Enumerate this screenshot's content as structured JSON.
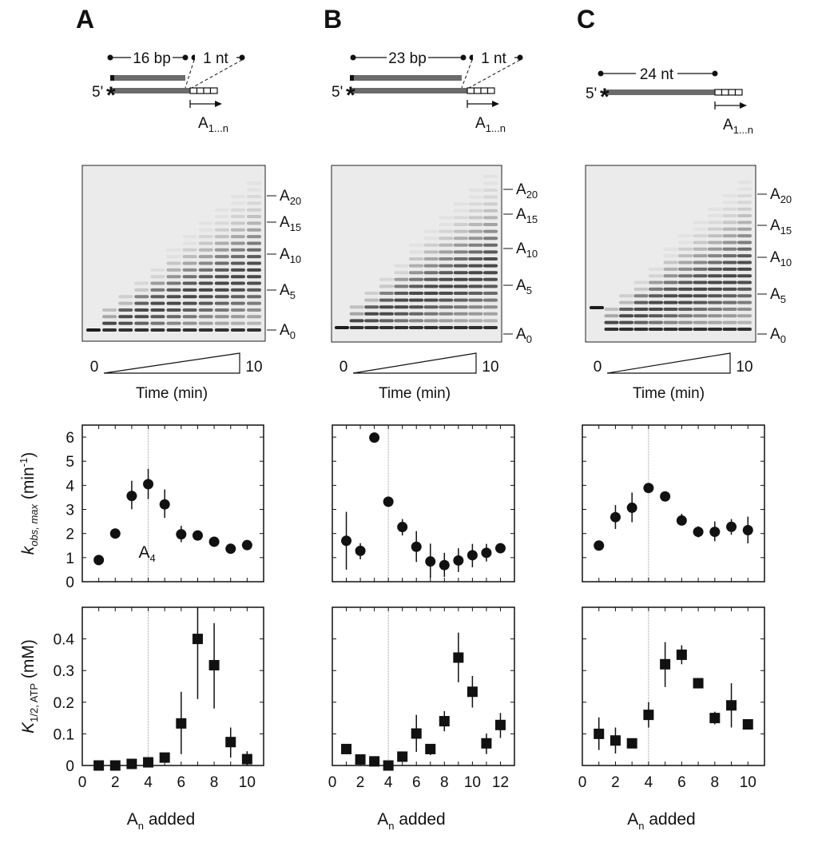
{
  "panels": [
    {
      "letter": "A",
      "diagram": {
        "prime": "5'",
        "star": "*",
        "duplex_label": "16 bp",
        "overhang_label": "1 nt",
        "product": {
          "base": "A",
          "sub": "1...n"
        }
      },
      "gel": {
        "markers": [
          {
            "base": "A",
            "sub": "20"
          },
          {
            "base": "A",
            "sub": "15"
          },
          {
            "base": "A",
            "sub": "10"
          },
          {
            "base": "A",
            "sub": "5"
          },
          {
            "base": "A",
            "sub": "0"
          }
        ],
        "time_start": "0",
        "time_end": "10",
        "time_label": "Time (min)",
        "lanes": 11
      }
    },
    {
      "letter": "B",
      "diagram": {
        "prime": "5'",
        "star": "*",
        "duplex_label": "23 bp",
        "overhang_label": "1 nt",
        "product": {
          "base": "A",
          "sub": "1...n"
        }
      },
      "gel": {
        "markers": [
          {
            "base": "A",
            "sub": "20"
          },
          {
            "base": "A",
            "sub": "15"
          },
          {
            "base": "A",
            "sub": "10"
          },
          {
            "base": "A",
            "sub": "5"
          },
          {
            "base": "A",
            "sub": "0"
          }
        ],
        "time_start": "0",
        "time_end": "10",
        "time_label": "Time (min)",
        "lanes": 11
      }
    },
    {
      "letter": "C",
      "diagram": {
        "prime": "5'",
        "star": "*",
        "duplex_label": "24 nt",
        "product": {
          "base": "A",
          "sub": "1...n"
        }
      },
      "gel": {
        "markers": [
          {
            "base": "A",
            "sub": "20"
          },
          {
            "base": "A",
            "sub": "15"
          },
          {
            "base": "A",
            "sub": "10"
          },
          {
            "base": "A",
            "sub": "5"
          },
          {
            "base": "A",
            "sub": "0"
          }
        ],
        "time_start": "0",
        "time_end": "10",
        "time_label": "Time (min)",
        "lanes": 11
      }
    }
  ],
  "axis_text": {
    "kobs_ylabel": {
      "main": "k",
      "sub": "obs, max",
      "unit": " (min",
      "sup": "-1",
      "close": ")"
    },
    "khalf_ylabel": {
      "main": "K",
      "sub": "1/2, ATP",
      "unit": " (mM)"
    },
    "xlabel": {
      "base": "A",
      "sub": "n",
      "rest": " added"
    },
    "annotation": {
      "base": "A",
      "sub": "4"
    }
  },
  "chart_data": [
    {
      "type": "scatter",
      "panel": "A",
      "metric": "kobs_max",
      "marker": "circle",
      "xlim": [
        0,
        11
      ],
      "ylim": [
        0,
        6.5
      ],
      "yticks": [
        "0",
        "1",
        "2",
        "3",
        "4",
        "5",
        "6"
      ],
      "xticks": [],
      "reference_x": 4,
      "points": [
        {
          "x": 1,
          "y": 0.9
        },
        {
          "x": 2,
          "y": 2.0,
          "lo": 1.85,
          "hi": 2.2
        },
        {
          "x": 3,
          "y": 3.56,
          "lo": 3.01,
          "hi": 4.19
        },
        {
          "x": 4,
          "y": 4.05,
          "lo": 3.43,
          "hi": 4.68
        },
        {
          "x": 5,
          "y": 3.21,
          "lo": 2.65,
          "hi": 3.83
        },
        {
          "x": 6,
          "y": 1.97,
          "lo": 1.64,
          "hi": 2.32
        },
        {
          "x": 7,
          "y": 1.92
        },
        {
          "x": 8,
          "y": 1.66
        },
        {
          "x": 9,
          "y": 1.37
        },
        {
          "x": 10,
          "y": 1.52,
          "lo": 1.38,
          "hi": 1.7
        }
      ]
    },
    {
      "type": "scatter",
      "panel": "A",
      "metric": "K_half_ATP",
      "marker": "square",
      "xlim": [
        0,
        11
      ],
      "ylim": [
        0,
        0.5
      ],
      "yticks": [
        "0",
        "0.1",
        "0.2",
        "0.3",
        "0.4"
      ],
      "xticks": [
        "0",
        "2",
        "4",
        "6",
        "8",
        "10"
      ],
      "reference_x": 4,
      "points": [
        {
          "x": 1,
          "y": 0
        },
        {
          "x": 2,
          "y": 0
        },
        {
          "x": 3,
          "y": 0.005
        },
        {
          "x": 4,
          "y": 0.01
        },
        {
          "x": 5,
          "y": 0.025
        },
        {
          "x": 6,
          "y": 0.133,
          "lo": 0.036,
          "hi": 0.233
        },
        {
          "x": 7,
          "y": 0.4,
          "lo": 0.21,
          "hi": 0.5
        },
        {
          "x": 8,
          "y": 0.317,
          "lo": 0.18,
          "hi": 0.45
        },
        {
          "x": 9,
          "y": 0.074,
          "lo": 0.025,
          "hi": 0.12
        },
        {
          "x": 10,
          "y": 0.02,
          "lo": 0,
          "hi": 0.045
        }
      ]
    },
    {
      "type": "scatter",
      "panel": "B",
      "metric": "kobs_max",
      "marker": "circle",
      "xlim": [
        0,
        13
      ],
      "ylim": [
        0,
        6.5
      ],
      "yticks": [],
      "xticks": [],
      "reference_x": 4,
      "points": [
        {
          "x": 1,
          "y": 1.7,
          "lo": 0.5,
          "hi": 2.9
        },
        {
          "x": 2,
          "y": 1.28,
          "lo": 0.93,
          "hi": 1.6
        },
        {
          "x": 3,
          "y": 5.98
        },
        {
          "x": 4,
          "y": 3.32,
          "lo": 3.15,
          "hi": 3.5
        },
        {
          "x": 5,
          "y": 2.27,
          "lo": 1.92,
          "hi": 2.6
        },
        {
          "x": 6,
          "y": 1.45,
          "lo": 0.82,
          "hi": 2.1
        },
        {
          "x": 7,
          "y": 0.84,
          "lo": 0.16,
          "hi": 1.58
        },
        {
          "x": 8,
          "y": 0.69,
          "lo": 0.2,
          "hi": 1.2
        },
        {
          "x": 9,
          "y": 0.88,
          "lo": 0.4,
          "hi": 1.39
        },
        {
          "x": 10,
          "y": 1.1,
          "lo": 0.6,
          "hi": 1.57
        },
        {
          "x": 11,
          "y": 1.2,
          "lo": 0.84,
          "hi": 1.57
        },
        {
          "x": 12,
          "y": 1.39
        }
      ]
    },
    {
      "type": "scatter",
      "panel": "B",
      "metric": "K_half_ATP",
      "marker": "square",
      "xlim": [
        0,
        13
      ],
      "ylim": [
        0,
        0.5
      ],
      "yticks": [],
      "xticks": [
        "0",
        "2",
        "4",
        "6",
        "8",
        "10",
        "12"
      ],
      "reference_x": 4,
      "points": [
        {
          "x": 1,
          "y": 0.052
        },
        {
          "x": 2,
          "y": 0.019
        },
        {
          "x": 3,
          "y": 0.013
        },
        {
          "x": 4,
          "y": 0
        },
        {
          "x": 5,
          "y": 0.028
        },
        {
          "x": 6,
          "y": 0.101,
          "lo": 0.043,
          "hi": 0.16
        },
        {
          "x": 7,
          "y": 0.052,
          "lo": 0.033,
          "hi": 0.068
        },
        {
          "x": 8,
          "y": 0.14,
          "lo": 0.108,
          "hi": 0.172
        },
        {
          "x": 9,
          "y": 0.341,
          "lo": 0.263,
          "hi": 0.42
        },
        {
          "x": 10,
          "y": 0.233,
          "lo": 0.183,
          "hi": 0.283
        },
        {
          "x": 11,
          "y": 0.07,
          "lo": 0.036,
          "hi": 0.101
        },
        {
          "x": 12,
          "y": 0.128,
          "lo": 0.087,
          "hi": 0.166
        }
      ]
    },
    {
      "type": "scatter",
      "panel": "C",
      "metric": "kobs_max",
      "marker": "circle",
      "xlim": [
        0,
        11
      ],
      "ylim": [
        0,
        6.5
      ],
      "yticks": [],
      "xticks": [],
      "reference_x": 4,
      "points": [
        {
          "x": 1,
          "y": 1.5
        },
        {
          "x": 2,
          "y": 2.68,
          "lo": 2.19,
          "hi": 3.18
        },
        {
          "x": 3,
          "y": 3.07,
          "lo": 2.47,
          "hi": 3.7
        },
        {
          "x": 4,
          "y": 3.89,
          "lo": 3.78,
          "hi": 4.0
        },
        {
          "x": 5,
          "y": 3.54
        },
        {
          "x": 6,
          "y": 2.54,
          "lo": 2.34,
          "hi": 2.82
        },
        {
          "x": 7,
          "y": 2.07,
          "lo": 1.84,
          "hi": 2.3
        },
        {
          "x": 8,
          "y": 2.07,
          "lo": 1.68,
          "hi": 2.5
        },
        {
          "x": 9,
          "y": 2.28,
          "lo": 1.95,
          "hi": 2.6
        },
        {
          "x": 10,
          "y": 2.14,
          "lo": 1.59,
          "hi": 2.7
        }
      ]
    },
    {
      "type": "scatter",
      "panel": "C",
      "metric": "K_half_ATP",
      "marker": "square",
      "xlim": [
        0,
        11
      ],
      "ylim": [
        0,
        0.5
      ],
      "yticks": [],
      "xticks": [
        "0",
        "2",
        "4",
        "6",
        "8",
        "10"
      ],
      "reference_x": 4,
      "points": [
        {
          "x": 1,
          "y": 0.1,
          "lo": 0.049,
          "hi": 0.152
        },
        {
          "x": 2,
          "y": 0.079,
          "lo": 0.038,
          "hi": 0.12
        },
        {
          "x": 3,
          "y": 0.07
        },
        {
          "x": 4,
          "y": 0.16,
          "lo": 0.12,
          "hi": 0.2
        },
        {
          "x": 5,
          "y": 0.32,
          "lo": 0.248,
          "hi": 0.39
        },
        {
          "x": 6,
          "y": 0.35,
          "lo": 0.32,
          "hi": 0.38
        },
        {
          "x": 7,
          "y": 0.26
        },
        {
          "x": 8,
          "y": 0.15,
          "lo": 0.13,
          "hi": 0.17
        },
        {
          "x": 9,
          "y": 0.19,
          "lo": 0.12,
          "hi": 0.26
        },
        {
          "x": 10,
          "y": 0.13
        }
      ]
    }
  ]
}
